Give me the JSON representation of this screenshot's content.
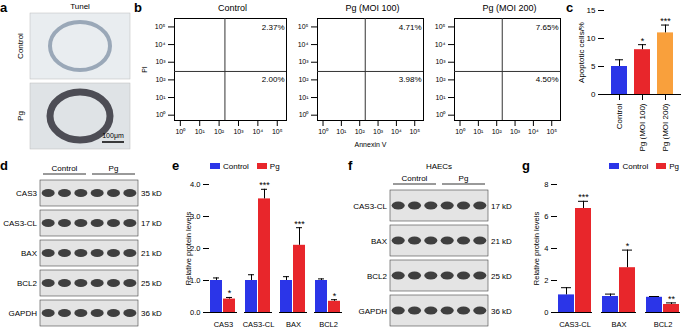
{
  "panel_labels": [
    "a",
    "b",
    "c",
    "d",
    "e",
    "f",
    "g"
  ],
  "images": {
    "title": "Tunel",
    "rows": [
      "Control",
      "Pg"
    ],
    "scale_bar": "100μm"
  },
  "blots": [
    {
      "groups": [
        "Control",
        "Pg"
      ],
      "rows": [
        {
          "protein": "CAS3",
          "size": "35 kD"
        },
        {
          "protein": "CAS3-CL",
          "size": "17 kD"
        },
        {
          "protein": "BAX",
          "size": "21 kD"
        },
        {
          "protein": "BCL2",
          "size": "25 kD"
        },
        {
          "protein": "GAPDH",
          "size": "36 kD"
        }
      ]
    },
    {
      "title": "HAECs",
      "groups": [
        "Control",
        "Pg"
      ],
      "rows": [
        {
          "protein": "CAS3-CL",
          "size": "17 kD"
        },
        {
          "protein": "BAX",
          "size": "21 kD"
        },
        {
          "protein": "BCL2",
          "size": "25 kD"
        },
        {
          "protein": "GAPDH",
          "size": "36 kD"
        }
      ]
    }
  ],
  "chart_data": [
    {
      "type": "scatter",
      "title": "Control",
      "ylabel": "PI",
      "log": true,
      "xlim": [
        0.5,
        300000
      ],
      "ylim": [
        0.5,
        300000
      ],
      "xticks": [
        {
          "value": 1,
          "label": "10⁰"
        },
        {
          "value": 10,
          "label": "10¹"
        },
        {
          "value": 100,
          "label": "10²"
        },
        {
          "value": 1000,
          "label": "10³"
        },
        {
          "value": 10000,
          "label": "10⁴"
        },
        {
          "value": 100000,
          "label": "10⁵"
        }
      ],
      "yticks": [
        {
          "value": 1,
          "label": "10⁰"
        },
        {
          "value": 10,
          "label": "10¹"
        },
        {
          "value": 100,
          "label": "10²"
        },
        {
          "value": 1000,
          "label": "10³"
        },
        {
          "value": 10000,
          "label": "10⁴"
        },
        {
          "value": 100000,
          "label": "10⁵"
        }
      ],
      "gate": {
        "x": 200,
        "y": 300
      },
      "quadrants": [
        {
          "position": "upper right",
          "value": 2.37,
          "label": "2.37%"
        },
        {
          "position": "lower right",
          "value": 2.0,
          "label": "2.00%"
        }
      ]
    },
    {
      "type": "scatter",
      "title": "Pg (MOI 100)",
      "xlabel": "Annexin V",
      "log": true,
      "xlim": [
        0.5,
        300000
      ],
      "ylim": [
        0.5,
        300000
      ],
      "xticks": [
        {
          "value": 1,
          "label": "10⁰"
        },
        {
          "value": 10,
          "label": "10¹"
        },
        {
          "value": 100,
          "label": "10²"
        },
        {
          "value": 1000,
          "label": "10³"
        },
        {
          "value": 10000,
          "label": "10⁴"
        },
        {
          "value": 100000,
          "label": "10⁵"
        }
      ],
      "yticks": [
        {
          "value": 1,
          "label": "10⁰"
        },
        {
          "value": 10,
          "label": "10¹"
        },
        {
          "value": 100,
          "label": "10²"
        },
        {
          "value": 1000,
          "label": "10³"
        },
        {
          "value": 10000,
          "label": "10⁴"
        },
        {
          "value": 100000,
          "label": "10⁵"
        }
      ],
      "gate": {
        "x": 200,
        "y": 300
      },
      "quadrants": [
        {
          "position": "upper right",
          "value": 4.71,
          "label": "4.71%"
        },
        {
          "position": "lower right",
          "value": 3.98,
          "label": "3.98%"
        }
      ]
    },
    {
      "type": "scatter",
      "title": "Pg (MOI 200)",
      "log": true,
      "xlim": [
        0.5,
        300000
      ],
      "ylim": [
        0.5,
        300000
      ],
      "xticks": [
        {
          "value": 1,
          "label": "10⁰"
        },
        {
          "value": 10,
          "label": "10¹"
        },
        {
          "value": 100,
          "label": "10²"
        },
        {
          "value": 1000,
          "label": "10³"
        },
        {
          "value": 10000,
          "label": "10⁴"
        },
        {
          "value": 100000,
          "label": "10⁵"
        }
      ],
      "yticks": [
        {
          "value": 1,
          "label": "10⁰"
        },
        {
          "value": 10,
          "label": "10¹"
        },
        {
          "value": 100,
          "label": "10²"
        },
        {
          "value": 1000,
          "label": "10³"
        },
        {
          "value": 10000,
          "label": "10⁴"
        },
        {
          "value": 100000,
          "label": "10⁵"
        }
      ],
      "gate": {
        "x": 200,
        "y": 300
      },
      "quadrants": [
        {
          "position": "upper right",
          "value": 7.65,
          "label": "7.65%"
        },
        {
          "position": "lower right",
          "value": 4.5,
          "label": "4.50%"
        }
      ]
    },
    {
      "type": "bar",
      "categories": [
        "Control",
        "Pg (MOI 100)",
        "Pg (MOI 200)"
      ],
      "values": [
        5,
        8,
        11
      ],
      "errors": [
        1.2,
        0.9,
        1.4
      ],
      "colors": [
        "#2b35e8",
        "#e8262b",
        "#f9a03c"
      ],
      "annotations": [
        null,
        "*",
        "***"
      ],
      "ylabel": "Apoptotic cells/%",
      "ylim": [
        0,
        15
      ],
      "yticks": [
        0,
        5,
        10,
        15
      ]
    },
    {
      "type": "bar",
      "categories": [
        "CAS3",
        "CAS3-CL",
        "BAX",
        "BCL2"
      ],
      "series": [
        {
          "name": "Control",
          "color": "#2b35e8",
          "values": [
            1,
            1,
            1,
            1
          ],
          "errors": [
            0.08,
            0.18,
            0.12,
            0.05
          ]
        },
        {
          "name": "Pg",
          "color": "#e8262b",
          "values": [
            0.42,
            3.55,
            2.1,
            0.35
          ],
          "errors": [
            0.05,
            0.3,
            0.55,
            0.05
          ],
          "annotations": [
            "*",
            "***",
            "***",
            "*"
          ]
        }
      ],
      "ylabel": "Relative protein levels",
      "ylim": [
        0,
        4
      ],
      "yticks": [
        0,
        1,
        2,
        3,
        4
      ],
      "legend": "top-left"
    },
    {
      "type": "bar",
      "categories": [
        "CAS3-CL",
        "BAX",
        "BCL2"
      ],
      "series": [
        {
          "name": "Control",
          "color": "#2b35e8",
          "values": [
            1.1,
            1,
            0.95
          ],
          "errors": [
            0.45,
            0.15,
            0.05
          ]
        },
        {
          "name": "Pg",
          "color": "#e8262b",
          "values": [
            6.5,
            2.8,
            0.5
          ],
          "errors": [
            0.45,
            1.1,
            0.1
          ],
          "annotations": [
            "***",
            "*",
            "**"
          ]
        }
      ],
      "ylabel": "Relative protein levels",
      "ylim": [
        0,
        8
      ],
      "yticks": [
        0,
        2,
        4,
        6,
        8
      ],
      "legend": "top-right"
    }
  ]
}
